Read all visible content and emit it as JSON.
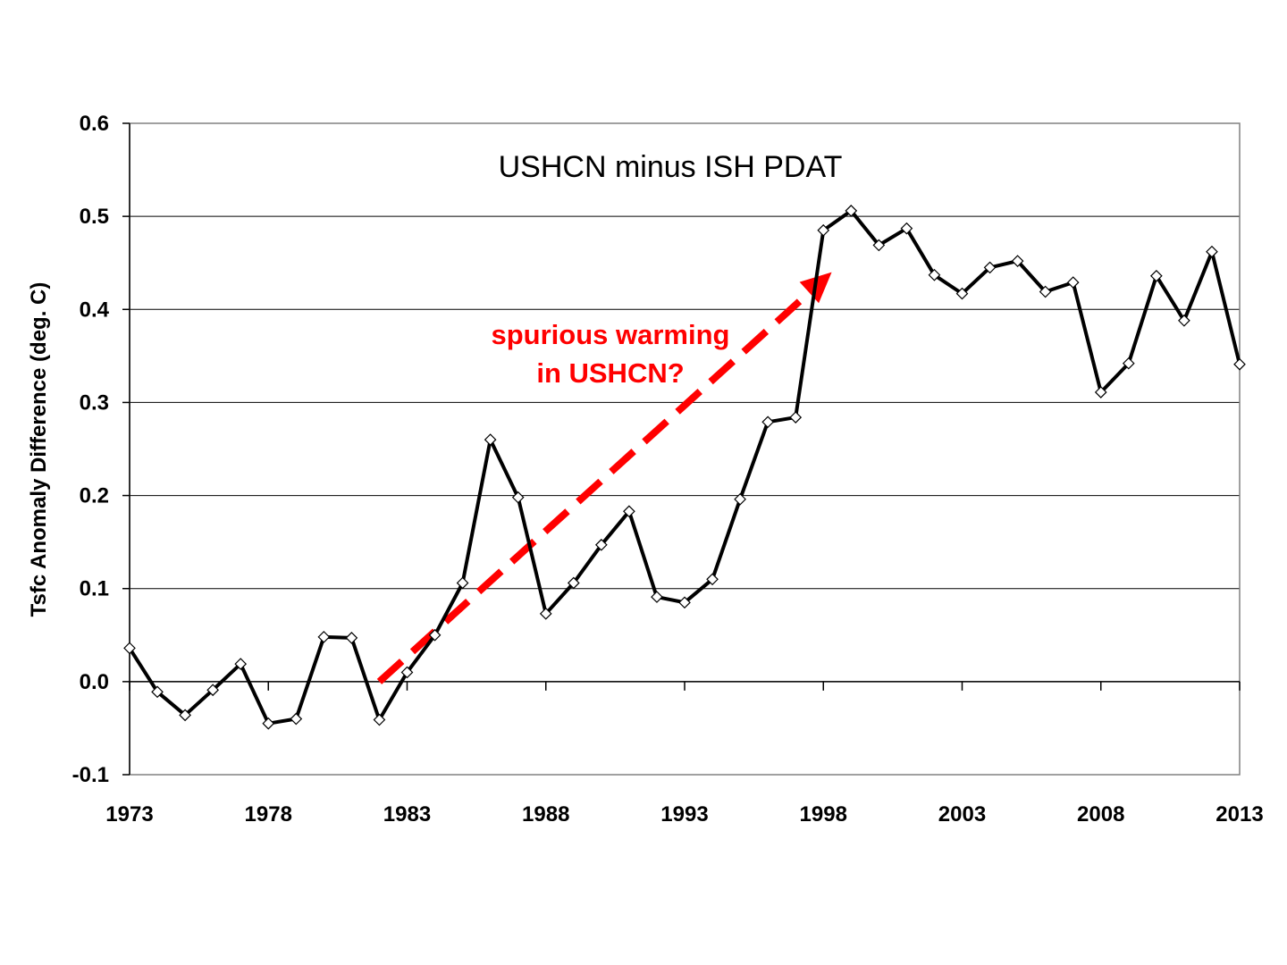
{
  "chart_data": {
    "type": "line",
    "title": "USHCN minus ISH PDAT",
    "xlabel": "",
    "ylabel": "Tsfc Anomaly Difference (deg. C)",
    "xlim": [
      1973,
      2013
    ],
    "ylim": [
      -0.1,
      0.6
    ],
    "x_ticks": [
      "1973",
      "1978",
      "1983",
      "1988",
      "1993",
      "1998",
      "2003",
      "2008",
      "2013"
    ],
    "y_ticks": [
      "-0.1",
      "0.0",
      "0.1",
      "0.2",
      "0.3",
      "0.4",
      "0.5",
      "0.6"
    ],
    "grid": "horizontal",
    "legend": "none",
    "series": [
      {
        "color": "#000000",
        "marker": "diamond",
        "x": [
          1973,
          1974,
          1975,
          1976,
          1977,
          1978,
          1979,
          1980,
          1981,
          1982,
          1983,
          1984,
          1985,
          1986,
          1987,
          1988,
          1989,
          1990,
          1991,
          1992,
          1993,
          1994,
          1995,
          1996,
          1997,
          1998,
          1999,
          2000,
          2001,
          2002,
          2003,
          2004,
          2005,
          2006,
          2007,
          2008,
          2009,
          2010,
          2011,
          2012,
          2013
        ],
        "values": [
          0.036,
          -0.011,
          -0.036,
          -0.009,
          0.019,
          -0.045,
          -0.04,
          0.048,
          0.047,
          -0.041,
          0.01,
          0.05,
          0.106,
          0.26,
          0.198,
          0.073,
          0.106,
          0.147,
          0.183,
          0.091,
          0.085,
          0.11,
          0.196,
          0.279,
          0.284,
          0.485,
          0.506,
          0.469,
          0.487,
          0.437,
          0.417,
          0.445,
          0.452,
          0.419,
          0.429,
          0.311,
          0.342,
          0.436,
          0.388,
          0.462,
          0.341
        ]
      }
    ],
    "annotation": {
      "lines": [
        "spurious warming",
        "in USHCN?"
      ],
      "color": "#ff0000",
      "arrow": {
        "from": [
          1982,
          0.0
        ],
        "to": [
          1998.3,
          0.44
        ],
        "style": "dashed"
      }
    }
  }
}
